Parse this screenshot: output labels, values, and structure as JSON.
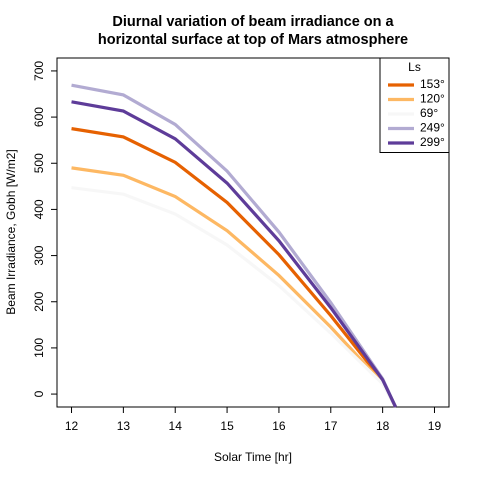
{
  "chart_data": {
    "type": "line",
    "title": [
      "Diurnal variation of beam irradiance on a",
      "horizontal surface at top of Mars atmosphere"
    ],
    "x_label": "Solar Time [hr]",
    "y_label": "Beam Irradiance, Gobh [W/m2]",
    "legend_title": "Ls",
    "legend_position": "top-right",
    "x": [
      12,
      13,
      14,
      15,
      16,
      17,
      18,
      18.25
    ],
    "series": [
      {
        "name": "153°",
        "color": "#e66101",
        "values": [
          575,
          557,
          502,
          415,
          302,
          170,
          28,
          -28
        ]
      },
      {
        "name": "120°",
        "color": "#fdb863",
        "values": [
          490,
          474,
          428,
          354,
          257,
          145,
          24,
          -28
        ]
      },
      {
        "name": "69°",
        "color": "#f7f7f7",
        "values": [
          447,
          433,
          390,
          323,
          235,
          132,
          22,
          -28
        ]
      },
      {
        "name": "249°",
        "color": "#b2abd2",
        "values": [
          669,
          648,
          584,
          483,
          351,
          198,
          33,
          -28
        ]
      },
      {
        "name": "299°",
        "color": "#5e3c99",
        "values": [
          633,
          613,
          553,
          457,
          332,
          187,
          31,
          -28
        ]
      }
    ],
    "xlim": [
      11.72,
      19.28
    ],
    "xticks": [
      12,
      13,
      14,
      15,
      16,
      17,
      18,
      19
    ],
    "ylim": [
      -28,
      728
    ],
    "yticks": [
      0,
      100,
      200,
      300,
      400,
      500,
      600,
      700
    ]
  }
}
